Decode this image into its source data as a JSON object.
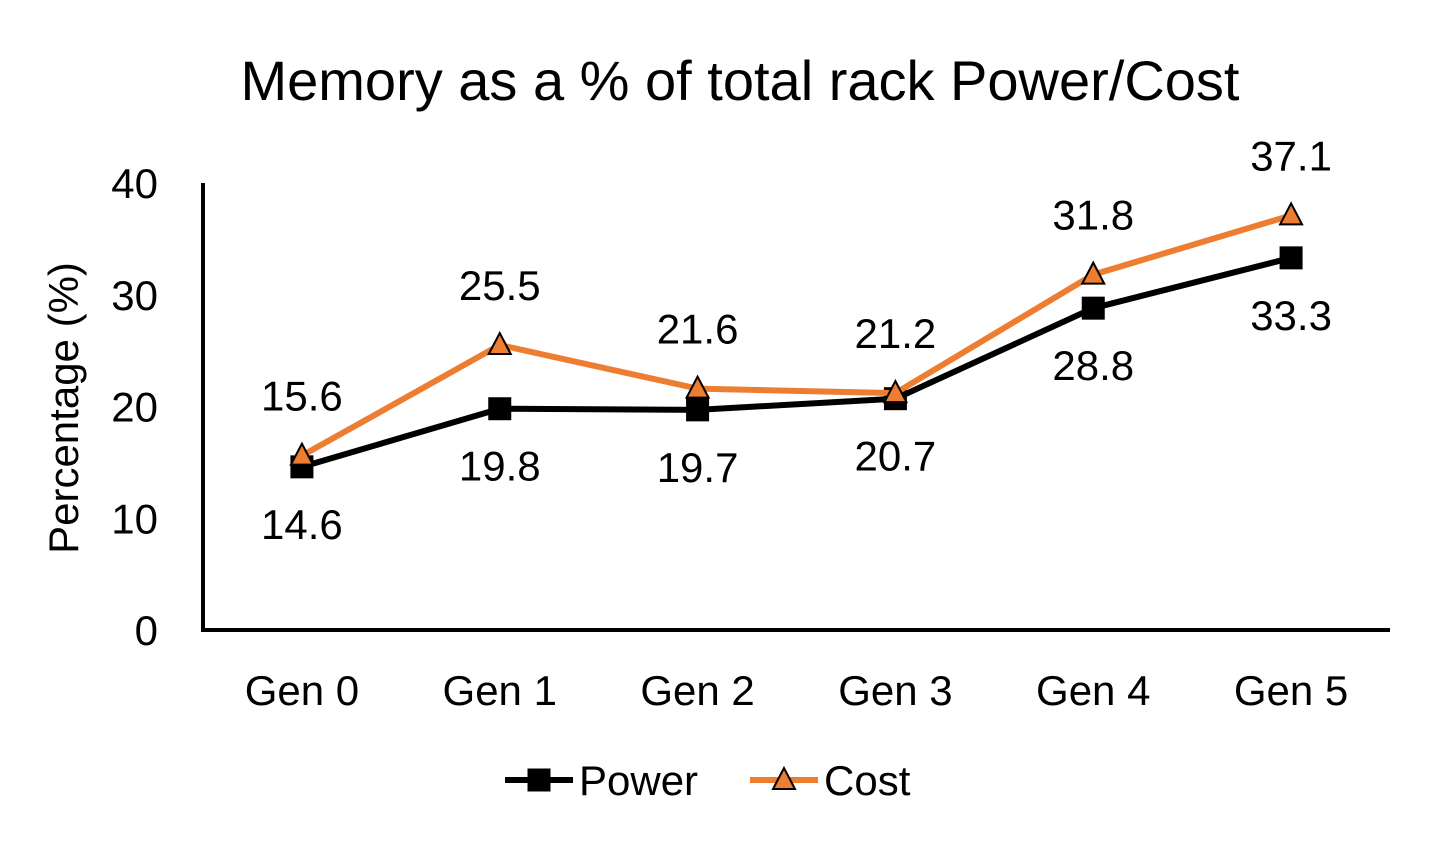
{
  "chart_data": {
    "type": "line",
    "title": "Memory as a % of total rack Power/Cost",
    "xlabel": "",
    "ylabel": "Percentage (%)",
    "categories": [
      "Gen 0",
      "Gen 1",
      "Gen 2",
      "Gen 3",
      "Gen 4",
      "Gen 5"
    ],
    "ylim": [
      0,
      40
    ],
    "yticks": [
      0,
      10,
      20,
      30,
      40
    ],
    "grid": false,
    "legend_position": "bottom",
    "series": [
      {
        "name": "Power",
        "values": [
          14.6,
          19.8,
          19.7,
          20.7,
          28.8,
          33.3
        ],
        "labels": [
          "14.6",
          "19.8",
          "19.7",
          "20.7",
          "28.8",
          "33.3"
        ],
        "color": "#000000",
        "marker": "square",
        "label_position": "below"
      },
      {
        "name": "Cost",
        "values": [
          15.6,
          25.5,
          21.6,
          21.2,
          31.8,
          37.1
        ],
        "labels": [
          "15.6",
          "25.5",
          "21.6",
          "21.2",
          "31.8",
          "37.1"
        ],
        "color": "#ED7D31",
        "marker": "triangle",
        "label_position": "above"
      }
    ]
  }
}
